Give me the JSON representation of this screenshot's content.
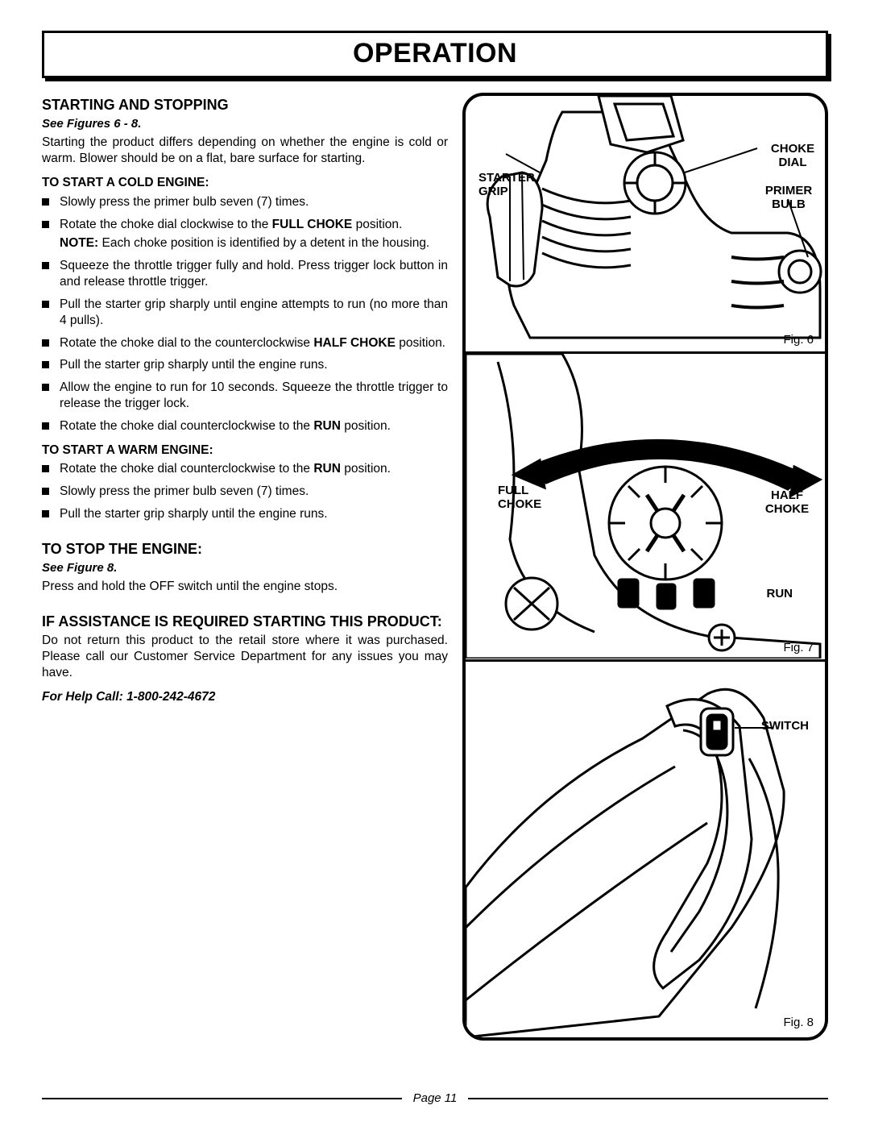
{
  "page": {
    "title": "OPERATION",
    "footer": "Page 11"
  },
  "sections": {
    "start_stop": {
      "heading": "STARTING AND STOPPING",
      "see": "See Figures 6 - 8.",
      "intro": "Starting the product differs depending on whether the engine is cold or warm. Blower should be on a flat, bare surface for starting.",
      "cold_head": "TO START A COLD ENGINE:",
      "cold_items": [
        "Slowly press the primer bulb seven (7) times.",
        "Rotate the choke dial clockwise to the <b>FULL CHOKE</b> position.",
        "Squeeze the throttle trigger fully and hold. Press trigger lock button in and release throttle trigger.",
        "Pull the starter grip sharply until engine attempts to run (no more than 4 pulls).",
        "Rotate the choke dial to the counterclockwise <b>HALF CHOKE</b> position.",
        "Pull the starter grip sharply until the engine runs.",
        "Allow the engine to run for 10 seconds. Squeeze the throttle trigger to release the trigger lock.",
        "Rotate the choke dial counterclockwise to the <b>RUN</b> position."
      ],
      "note": "<b>NOTE:</b> Each choke position is identified by a detent in the housing.",
      "warm_head": "TO START A WARM ENGINE:",
      "warm_items": [
        "Rotate the choke dial counterclockwise to the <b>RUN</b> position.",
        "Slowly press the primer bulb seven (7) times.",
        "Pull the starter grip sharply until the engine runs."
      ]
    },
    "stop": {
      "heading": "TO STOP THE ENGINE:",
      "see": "See Figure 8.",
      "body": "Press and hold the OFF switch until the engine stops."
    },
    "assist": {
      "heading": "IF ASSISTANCE IS REQUIRED STARTING THIS PRODUCT:",
      "body": "Do not return this product to the retail store where it was purchased. Please call our Customer Service Department for any issues you may have.",
      "help": "For Help Call: 1-800-242-4672"
    }
  },
  "figures": {
    "fig6": {
      "caption": "Fig. 6",
      "labels": {
        "starter_grip": "STARTER GRIP",
        "choke_dial": "CHOKE DIAL",
        "primer_bulb": "PRIMER BULB"
      }
    },
    "fig7": {
      "caption": "Fig. 7",
      "labels": {
        "full_choke": "FULL CHOKE",
        "half_choke": "HALF CHOKE",
        "run": "RUN"
      }
    },
    "fig8": {
      "caption": "Fig. 8",
      "labels": {
        "switch": "SWITCH"
      }
    }
  }
}
